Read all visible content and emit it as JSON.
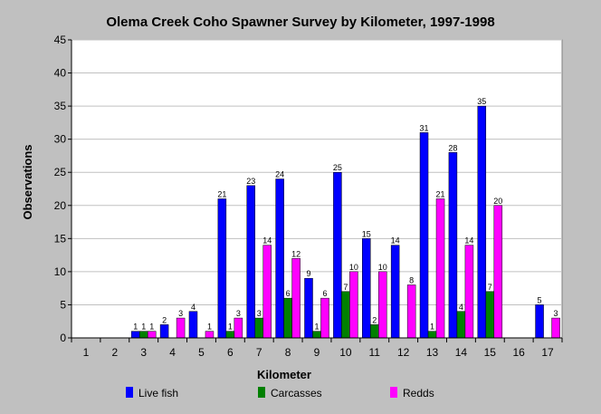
{
  "chart_data": {
    "type": "bar",
    "title": "Olema Creek Coho Spawner Survey by Kilometer, 1997-1998",
    "xlabel": "Kilometer",
    "ylabel": "Observations",
    "ylim": [
      0,
      45
    ],
    "yticks": [
      "0",
      "5",
      "10",
      "15",
      "20",
      "25",
      "30",
      "35",
      "40",
      "45"
    ],
    "grid": true,
    "legend_position": "bottom",
    "categories": [
      "1",
      "2",
      "3",
      "4",
      "5",
      "6",
      "7",
      "8",
      "9",
      "10",
      "11",
      "12",
      "13",
      "14",
      "15",
      "16",
      "17"
    ],
    "series": [
      {
        "name": "Live fish",
        "color": "#0000ff",
        "values": [
          0,
          0,
          1,
          2,
          4,
          21,
          23,
          24,
          9,
          25,
          15,
          14,
          31,
          28,
          35,
          0,
          5
        ]
      },
      {
        "name": "Carcasses",
        "color": "#008000",
        "values": [
          0,
          0,
          1,
          0,
          0,
          1,
          3,
          6,
          1,
          7,
          2,
          0,
          1,
          4,
          7,
          0,
          0
        ]
      },
      {
        "name": "Redds",
        "color": "#ff00ff",
        "values": [
          0,
          0,
          1,
          3,
          1,
          3,
          14,
          12,
          6,
          10,
          10,
          8,
          21,
          14,
          20,
          0,
          3
        ]
      }
    ]
  }
}
